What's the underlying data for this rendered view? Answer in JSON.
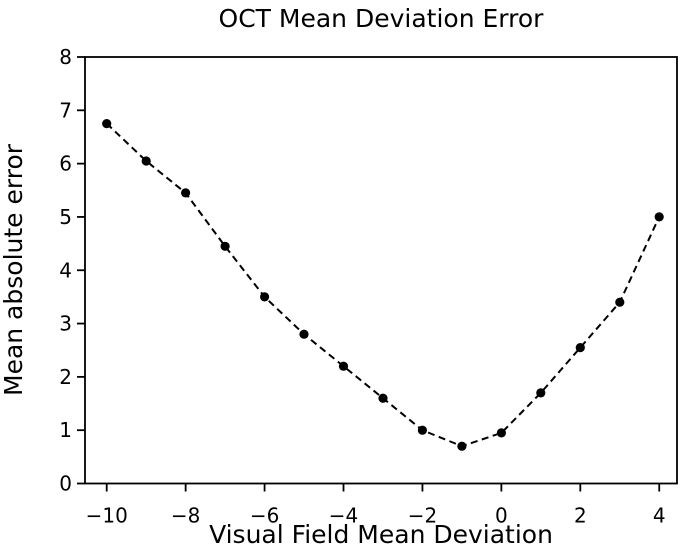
{
  "chart_data": {
    "type": "line",
    "title": "OCT Mean Deviation Error",
    "xlabel": "Visual Field Mean Deviation",
    "ylabel": "Mean absolute error",
    "x": [
      -10,
      -9,
      -8,
      -7,
      -6,
      -5,
      -4,
      -3,
      -2,
      -1,
      0,
      1,
      2,
      3,
      4
    ],
    "y": [
      6.75,
      6.05,
      5.45,
      4.45,
      3.5,
      2.8,
      2.2,
      1.6,
      1.0,
      0.7,
      0.95,
      1.7,
      2.55,
      3.4,
      5.0
    ],
    "xlim": [
      -10.55,
      4.45
    ],
    "ylim": [
      0,
      8
    ],
    "xticks": [
      -10,
      -8,
      -6,
      -4,
      -2,
      0,
      2,
      4
    ],
    "xtick_labels": [
      "−10",
      "−8",
      "−6",
      "−4",
      "−2",
      "0",
      "2",
      "4"
    ],
    "yticks": [
      0,
      1,
      2,
      3,
      4,
      5,
      6,
      7,
      8
    ],
    "ytick_labels": [
      "0",
      "1",
      "2",
      "3",
      "4",
      "5",
      "6",
      "7",
      "8"
    ],
    "line_style": "dashed",
    "marker": "circle",
    "line_color": "#000000",
    "marker_color": "#000000",
    "axis_color": "#000000",
    "background_color": "#ffffff",
    "grid": false,
    "legend": "none"
  }
}
